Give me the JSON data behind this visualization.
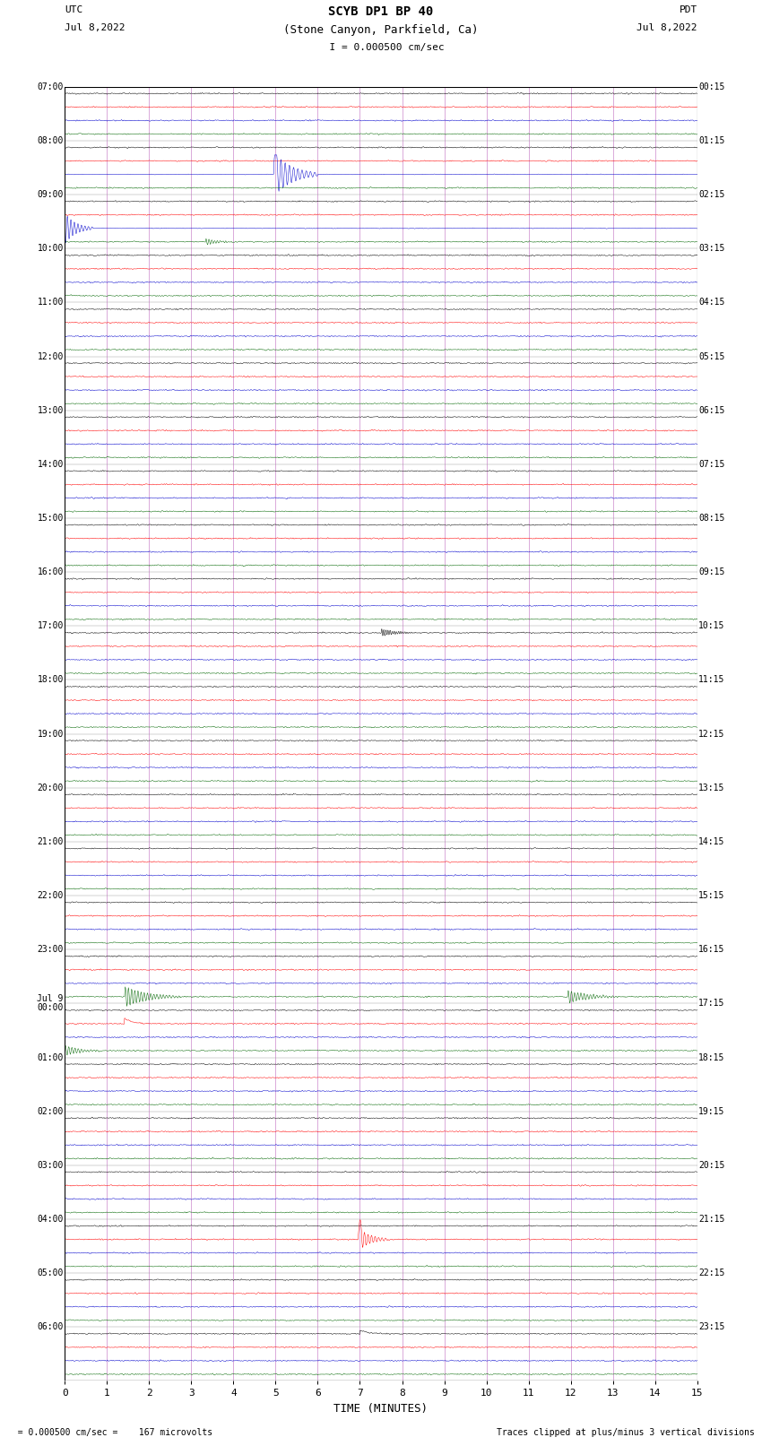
{
  "title_line1": "SCYB DP1 BP 40",
  "title_line2": "(Stone Canyon, Parkfield, Ca)",
  "scale_label": "  I = 0.000500 cm/sec",
  "utc_label": "UTC",
  "pdt_label": "PDT",
  "date_left": "Jul 8,2022",
  "date_right": "Jul 8,2022",
  "xlabel": "TIME (MINUTES)",
  "footer_left": "  = 0.000500 cm/sec =    167 microvolts",
  "footer_right": "Traces clipped at plus/minus 3 vertical divisions",
  "bg_color": "#ffffff",
  "trace_colors": [
    "#000000",
    "#ff0000",
    "#0000cc",
    "#006600"
  ],
  "grid_color": "#cc88cc",
  "left_times_utc": [
    "07:00",
    "08:00",
    "09:00",
    "10:00",
    "11:00",
    "12:00",
    "13:00",
    "14:00",
    "15:00",
    "16:00",
    "17:00",
    "18:00",
    "19:00",
    "20:00",
    "21:00",
    "22:00",
    "23:00",
    "Jul 9\n00:00",
    "01:00",
    "02:00",
    "03:00",
    "04:00",
    "05:00",
    "06:00"
  ],
  "right_times_pdt": [
    "00:15",
    "01:15",
    "02:15",
    "03:15",
    "04:15",
    "05:15",
    "06:15",
    "07:15",
    "08:15",
    "09:15",
    "10:15",
    "11:15",
    "12:15",
    "13:15",
    "14:15",
    "15:15",
    "16:15",
    "17:15",
    "18:15",
    "19:15",
    "20:15",
    "21:15",
    "22:15",
    "23:15"
  ],
  "n_rows": 24,
  "n_channels": 4,
  "x_ticks": [
    0,
    1,
    2,
    3,
    4,
    5,
    6,
    7,
    8,
    9,
    10,
    11,
    12,
    13,
    14,
    15
  ],
  "xlim": [
    0,
    15
  ]
}
